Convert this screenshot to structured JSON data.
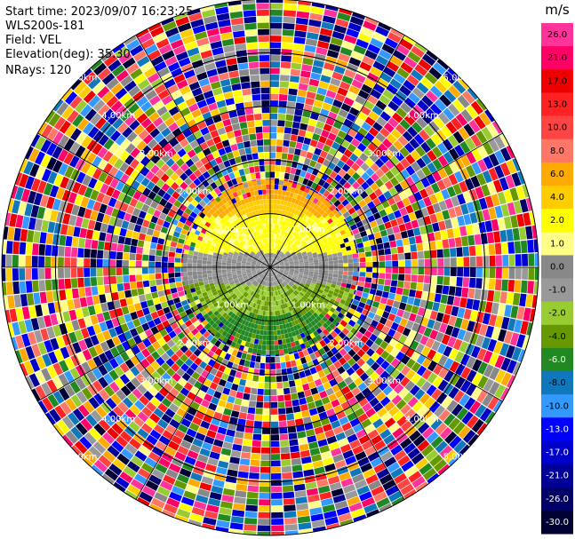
{
  "header": {
    "start_time": "Start time: 2023/09/07 16:23:25",
    "station": "WLS200s-181",
    "field": "Field: VEL",
    "elevation": "Elevation(deg): 35.30",
    "nrays": "NRays: 120"
  },
  "chart_data": {
    "type": "heatmap",
    "projection": "polar-ppi",
    "field": "VEL",
    "n_rays": 120,
    "range_rings": [
      {
        "range_km": 1.0,
        "labels": [
          "1.00km",
          "1.00km",
          "1.00km",
          "1.00km"
        ]
      },
      {
        "range_km": 2.0,
        "labels": [
          "2.00km",
          "2.00km",
          "2.00km",
          "2.00km"
        ]
      },
      {
        "range_km": 3.0,
        "labels": [
          "3.00km",
          "3.00km",
          "3.00km",
          "3.00km"
        ]
      },
      {
        "range_km": 4.0,
        "labels": [
          "4.00km",
          "4.00km",
          "4.00km",
          "4.00km"
        ]
      },
      {
        "range_km": 5.0,
        "labels": [
          "5.00km",
          "5.00km",
          "5.00km",
          "5.00km"
        ]
      }
    ],
    "max_range_km": 5.0,
    "valid_data_range_km": 1.0,
    "spokes_deg": [
      0,
      30,
      60,
      90,
      120,
      150,
      180,
      210,
      240,
      270,
      300,
      330
    ],
    "colorbar": {
      "unit": "m/s",
      "tick_labels": [
        "26.0",
        "21.0",
        "17.0",
        "13.0",
        "10.0",
        "8.0",
        "6.0",
        "4.0",
        "2.0",
        "1.0",
        "0.0",
        "-1.0",
        "-2.0",
        "-4.0",
        "-6.0",
        "-8.0",
        "-10.0",
        "-13.0",
        "-17.0",
        "-21.0",
        "-26.0",
        "-30.0"
      ],
      "colors": [
        "#ff3399",
        "#ff0066",
        "#ee0000",
        "#ff2222",
        "#ff4444",
        "#ff7766",
        "#ffaa00",
        "#ffcc00",
        "#ffff00",
        "#ffff88",
        "#888888",
        "#999999",
        "#99cc33",
        "#669900",
        "#228822",
        "#1177bb",
        "#3399ff",
        "#0000ff",
        "#0000cc",
        "#000099",
        "#000066",
        "#000033"
      ],
      "label_colors": [
        "#000000",
        "#000000",
        "#000000",
        "#000000",
        "#000000",
        "#000000",
        "#000000",
        "#000000",
        "#000000",
        "#000000",
        "#000000",
        "#000000",
        "#000000",
        "#000000",
        "#ffffff",
        "#000000",
        "#000000",
        "#ffffff",
        "#ffffff",
        "#ffffff",
        "#ffffff",
        "#ffffff"
      ]
    },
    "approx_pattern": {
      "north_sector_inner_ring": "yellow-orange (2 to 6 m/s)",
      "center": "gray (about 0 m/s)",
      "south_sector_inner_ring": "green (-2 to -6 m/s)",
      "beyond_1.5km": "noise (all colors)"
    }
  }
}
